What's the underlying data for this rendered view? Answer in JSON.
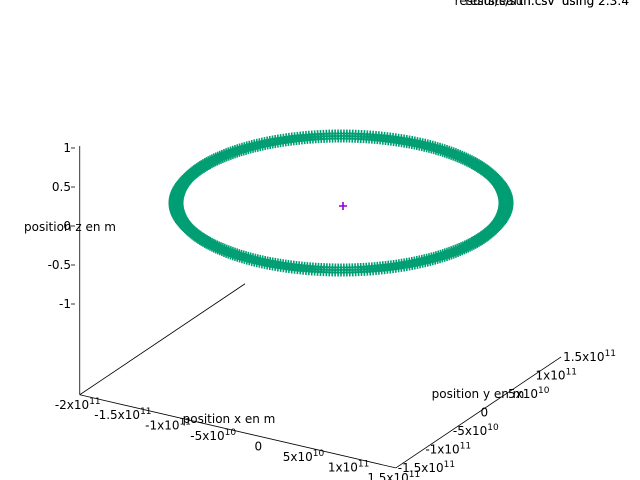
{
  "chart_data": {
    "type": "scatter",
    "projection": "3d",
    "legend_placement": "top-right",
    "legend": [
      "results/earth.csv' using 2:3:4",
      "results/sun.csv' using 2:3:4"
    ],
    "axes": {
      "x": {
        "label": "position x en m",
        "ticks": [
          {
            "value": -200000000000,
            "base": "-2x10",
            "exp": "11"
          },
          {
            "value": -150000000000,
            "base": "-1.5x10",
            "exp": "11"
          },
          {
            "value": -100000000000,
            "base": "-1x10",
            "exp": "11"
          },
          {
            "value": -50000000000,
            "base": "-5x10",
            "exp": "10"
          },
          {
            "value": 0,
            "base": "0",
            "exp": ""
          },
          {
            "value": 50000000000,
            "base": "5x10",
            "exp": "10"
          },
          {
            "value": 100000000000,
            "base": "1x10",
            "exp": "11"
          },
          {
            "value": 150000000000,
            "base": "1.5x10",
            "exp": "11"
          }
        ],
        "range": [
          -200000000000,
          150000000000
        ]
      },
      "y": {
        "label": "position y en m",
        "ticks": [
          {
            "value": -150000000000,
            "base": "-1.5x10",
            "exp": "11"
          },
          {
            "value": -100000000000,
            "base": "-1x10",
            "exp": "11"
          },
          {
            "value": -50000000000,
            "base": "-5x10",
            "exp": "10"
          },
          {
            "value": 0,
            "base": "0",
            "exp": ""
          },
          {
            "value": 50000000000,
            "base": "5x10",
            "exp": "10"
          },
          {
            "value": 100000000000,
            "base": "1x10",
            "exp": "11"
          },
          {
            "value": 150000000000,
            "base": "1.5x10",
            "exp": "11"
          }
        ],
        "range": [
          -150000000000,
          150000000000
        ]
      },
      "z": {
        "label": "position z en m",
        "ticks": [
          {
            "value": -1,
            "base": "-1",
            "exp": ""
          },
          {
            "value": -0.5,
            "base": "-0.5",
            "exp": ""
          },
          {
            "value": 0,
            "base": "0",
            "exp": ""
          },
          {
            "value": 0.5,
            "base": "0.5",
            "exp": ""
          },
          {
            "value": 1,
            "base": "1",
            "exp": ""
          }
        ],
        "range": [
          -1,
          1
        ]
      }
    },
    "series": [
      {
        "color": "#009e73",
        "marker": "plus",
        "shape": "circular orbit around origin at z = 0",
        "radius_m": 150000000000,
        "z": 0
      },
      {
        "color": "#9400d3",
        "marker": "plus",
        "points": [
          {
            "x": 0,
            "y": 0,
            "z": 0
          }
        ]
      }
    ]
  }
}
